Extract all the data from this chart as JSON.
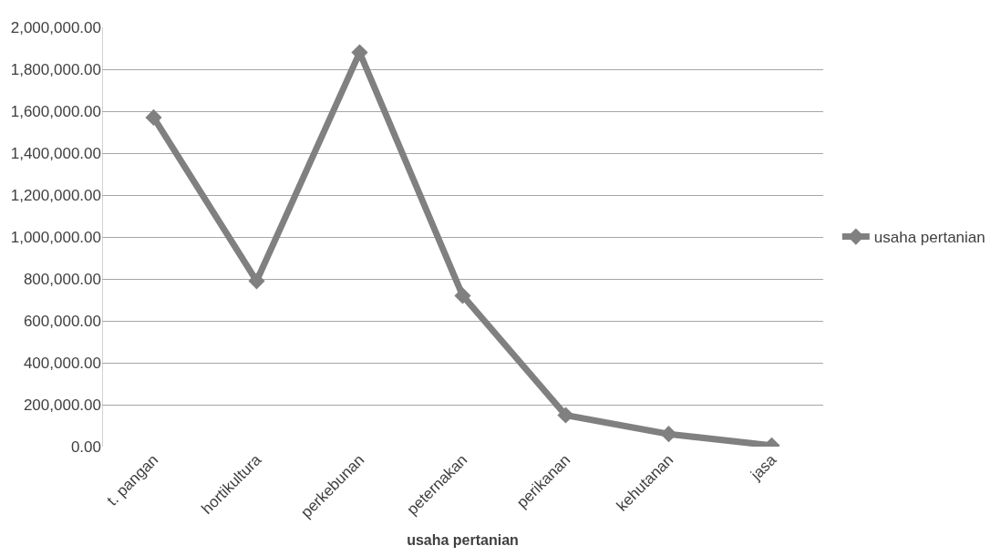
{
  "chart_data": {
    "type": "line",
    "xlabel": "usaha pertanian",
    "categories": [
      "t. pangan",
      "hortikultura",
      "perkebunan",
      "peternakan",
      "perikanan",
      "kehutanan",
      "jasa"
    ],
    "series": [
      {
        "name": "usaha pertanian",
        "color": "#808080",
        "values": [
          1570000,
          790000,
          1880000,
          720000,
          150000,
          60000,
          5000
        ]
      }
    ],
    "ylim": [
      0,
      2000000
    ],
    "yticks": [
      {
        "value": 0,
        "label": "0.00"
      },
      {
        "value": 200000,
        "label": "200,000.00"
      },
      {
        "value": 400000,
        "label": "400,000.00"
      },
      {
        "value": 600000,
        "label": "600,000.00"
      },
      {
        "value": 800000,
        "label": "800,000.00"
      },
      {
        "value": 1000000,
        "label": "1,000,000.00"
      },
      {
        "value": 1200000,
        "label": "1,200,000.00"
      },
      {
        "value": 1400000,
        "label": "1,400,000.00"
      },
      {
        "value": 1600000,
        "label": "1,600,000.00"
      },
      {
        "value": 1800000,
        "label": "1,800,000.00"
      },
      {
        "value": 2000000,
        "label": "2,000,000.00"
      }
    ],
    "grid": "y",
    "legend": "right",
    "marker": "diamond",
    "line_style": "solid"
  }
}
